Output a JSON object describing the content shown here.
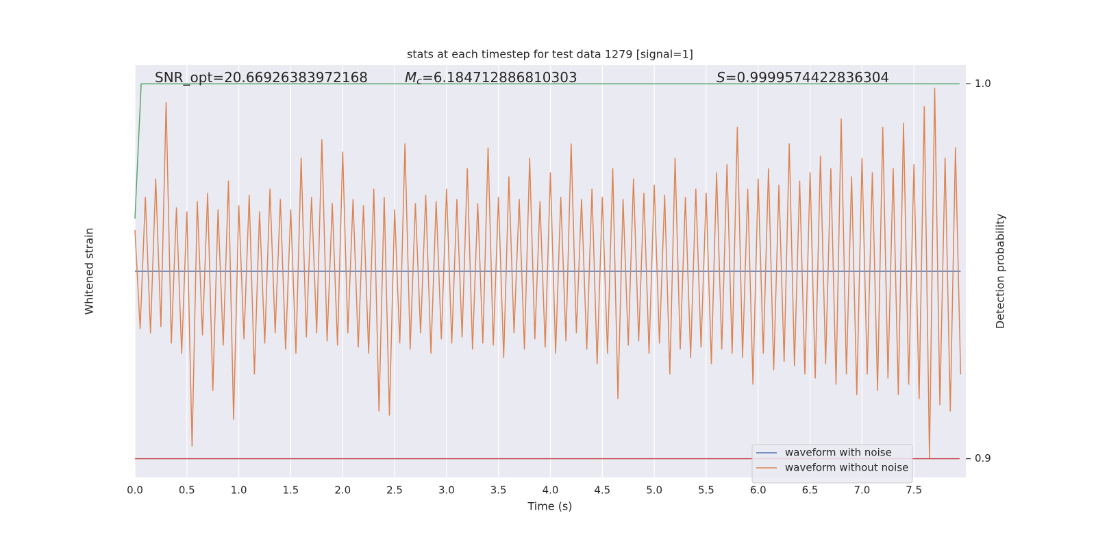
{
  "chart_data": {
    "type": "line",
    "title": "stats at each timestep for test data 1279 [signal=1]",
    "x_label": "Time (s)",
    "y_label": "Whitened strain",
    "y2_label": "Detection probability",
    "annotations": [
      {
        "text": "SNR_opt=20.66926383972168"
      },
      {
        "symbol": "M",
        "subscript": "c",
        "text": "=6.184712886810303"
      },
      {
        "symbol": "S",
        "text": "=0.9999574422836304"
      }
    ],
    "xlim": [
      0,
      8.0
    ],
    "xticks": [
      {
        "value": 0,
        "label": "0.0"
      },
      0.5,
      {
        "value": 1,
        "label": "1.0"
      },
      1.5,
      {
        "value": 2,
        "label": "2.0"
      },
      2.5,
      {
        "value": 3,
        "label": "3.0"
      },
      3.5,
      {
        "value": 4,
        "label": "4.0"
      },
      4.5,
      {
        "value": 5,
        "label": "5.0"
      },
      5.5,
      {
        "value": 6,
        "label": "6.0"
      },
      6.5,
      {
        "value": 7,
        "label": "7.0"
      },
      7.5
    ],
    "ylim": [
      -1,
      1
    ],
    "y2lim": [
      0.895,
      1.005
    ],
    "y2ticks": [
      {
        "value": 1,
        "label": "1.0"
      },
      {
        "value": 0.9,
        "label": "0.9"
      }
    ],
    "grid": "x",
    "legend": "lower right",
    "series": [
      {
        "name": "waveform with noise",
        "color": "#4c72b0",
        "x": [
          0,
          7.95
        ],
        "values": [
          0,
          0
        ]
      },
      {
        "name": "waveform without noise",
        "color": "#dd8452",
        "x": [
          0,
          0.05,
          0.1,
          0.15,
          0.2,
          0.25,
          0.3,
          0.35,
          0.4,
          0.45,
          0.5,
          0.55,
          0.6,
          0.65,
          0.7,
          0.75,
          0.8,
          0.85,
          0.9,
          0.95,
          1,
          1.05,
          1.1,
          1.15,
          1.2,
          1.25,
          1.3,
          1.35,
          1.4,
          1.45,
          1.5,
          1.55,
          1.6,
          1.65,
          1.7,
          1.75,
          1.8,
          1.85,
          1.9,
          1.95,
          2,
          2.05,
          2.1,
          2.15,
          2.2,
          2.25,
          2.3,
          2.35,
          2.4,
          2.45,
          2.5,
          2.55,
          2.6,
          2.65,
          2.7,
          2.75,
          2.8,
          2.85,
          2.9,
          2.95,
          3,
          3.05,
          3.1,
          3.15,
          3.2,
          3.25,
          3.3,
          3.35,
          3.4,
          3.45,
          3.5,
          3.55,
          3.6,
          3.65,
          3.7,
          3.75,
          3.8,
          3.85,
          3.9,
          3.95,
          4,
          4.05,
          4.1,
          4.15,
          4.2,
          4.25,
          4.3,
          4.35,
          4.4,
          4.45,
          4.5,
          4.55,
          4.6,
          4.65,
          4.7,
          4.75,
          4.8,
          4.85,
          4.9,
          4.95,
          5,
          5.05,
          5.1,
          5.15,
          5.2,
          5.25,
          5.3,
          5.35,
          5.4,
          5.45,
          5.5,
          5.55,
          5.6,
          5.65,
          5.7,
          5.75,
          5.8,
          5.85,
          5.9,
          5.95,
          6,
          6.05,
          6.1,
          6.15,
          6.2,
          6.25,
          6.3,
          6.35,
          6.4,
          6.45,
          6.5,
          6.55,
          6.6,
          6.65,
          6.7,
          6.75,
          6.8,
          6.85,
          6.9,
          6.95,
          7,
          7.05,
          7.1,
          7.15,
          7.2,
          7.25,
          7.3,
          7.35,
          7.4,
          7.45,
          7.5,
          7.55,
          7.6,
          7.65,
          7.7,
          7.75,
          7.8,
          7.85,
          7.9,
          7.95
        ],
        "values": [
          0.2,
          -0.28,
          0.36,
          -0.3,
          0.45,
          -0.27,
          0.82,
          -0.35,
          0.31,
          -0.4,
          0.29,
          -0.85,
          0.34,
          -0.31,
          0.38,
          -0.58,
          0.3,
          -0.36,
          0.44,
          -0.72,
          0.32,
          -0.33,
          0.37,
          -0.5,
          0.29,
          -0.35,
          0.4,
          -0.3,
          0.35,
          -0.38,
          0.3,
          -0.4,
          0.55,
          -0.32,
          0.36,
          -0.3,
          0.64,
          -0.34,
          0.33,
          -0.36,
          0.58,
          -0.3,
          0.35,
          -0.37,
          0.32,
          -0.4,
          0.4,
          -0.68,
          0.36,
          -0.7,
          0.3,
          -0.35,
          0.62,
          -0.38,
          0.33,
          -0.3,
          0.37,
          -0.4,
          0.34,
          -0.33,
          0.4,
          -0.35,
          0.35,
          -0.32,
          0.5,
          -0.38,
          0.33,
          -0.35,
          0.6,
          -0.36,
          0.36,
          -0.42,
          0.46,
          -0.3,
          0.35,
          -0.38,
          0.55,
          -0.33,
          0.34,
          -0.37,
          0.48,
          -0.4,
          0.36,
          -0.34,
          0.62,
          -0.3,
          0.35,
          -0.38,
          0.4,
          -0.45,
          0.36,
          -0.4,
          0.5,
          -0.62,
          0.35,
          -0.36,
          0.45,
          -0.34,
          0.38,
          -0.4,
          0.42,
          -0.35,
          0.37,
          -0.5,
          0.55,
          -0.38,
          0.36,
          -0.42,
          0.4,
          -0.37,
          0.38,
          -0.45,
          0.48,
          -0.38,
          0.52,
          -0.4,
          0.7,
          -0.42,
          0.4,
          -0.55,
          0.45,
          -0.4,
          0.5,
          -0.48,
          0.42,
          -0.44,
          0.62,
          -0.46,
          0.44,
          -0.5,
          0.48,
          -0.52,
          0.56,
          -0.45,
          0.5,
          -0.55,
          0.74,
          -0.5,
          0.46,
          -0.6,
          0.55,
          -0.5,
          0.48,
          -0.58,
          0.7,
          -0.52,
          0.5,
          -0.6,
          0.72,
          -0.55,
          0.52,
          -0.62,
          0.8,
          -0.91,
          0.89,
          -0.65,
          0.55,
          -0.68,
          0.6,
          -0.5
        ]
      }
    ],
    "y2_series": [
      {
        "color": "#55a868",
        "axis": "y2",
        "x": [
          0,
          0.06,
          7.94
        ],
        "values": [
          0.964,
          1.0,
          1.0
        ]
      },
      {
        "color": "#c44e52",
        "axis": "y2",
        "x": [
          0,
          7.94
        ],
        "values": [
          0.9,
          0.9
        ]
      }
    ]
  }
}
